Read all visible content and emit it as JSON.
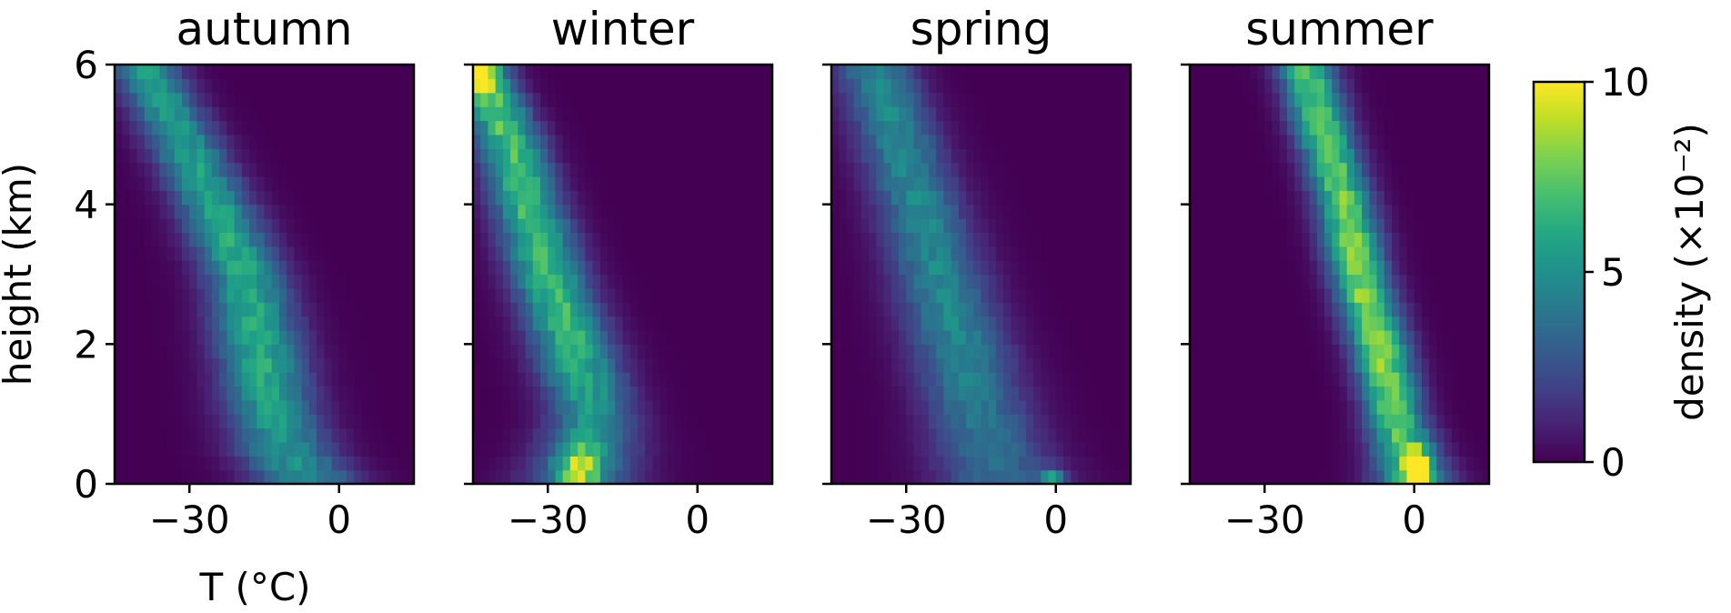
{
  "chart_data": {
    "type": "heatmap",
    "panels": [
      {
        "title": "autumn",
        "ridge": [
          [
            0,
            -6
          ],
          [
            0.5,
            -11
          ],
          [
            1,
            -13.5
          ],
          [
            2,
            -16
          ],
          [
            3,
            -19
          ],
          [
            4,
            -25
          ],
          [
            5,
            -32
          ],
          [
            6,
            -39
          ]
        ],
        "width_curve": [
          [
            0,
            11
          ],
          [
            1,
            9.5
          ],
          [
            6,
            7
          ]
        ],
        "peak_curve": [
          [
            0,
            4.8
          ],
          [
            2,
            6.2
          ],
          [
            6,
            5.5
          ]
        ],
        "hotspots": []
      },
      {
        "title": "winter",
        "ridge": [
          [
            0,
            -24
          ],
          [
            0.5,
            -22
          ],
          [
            1,
            -21
          ],
          [
            2,
            -25
          ],
          [
            3,
            -30
          ],
          [
            4,
            -34
          ],
          [
            5,
            -38
          ],
          [
            6,
            -44
          ]
        ],
        "width_curve": [
          [
            0,
            12
          ],
          [
            1,
            9
          ],
          [
            6,
            6
          ]
        ],
        "peak_curve": [
          [
            0,
            4.0
          ],
          [
            2,
            6.6
          ],
          [
            6,
            7.5
          ]
        ],
        "hotspots": [
          {
            "x": -23.5,
            "y": 0.22,
            "sx": 3.0,
            "sy": 0.25,
            "v": 5.5
          },
          {
            "x": -44,
            "y": 5.95,
            "sx": 1.8,
            "sy": 0.2,
            "v": 8.0
          }
        ]
      },
      {
        "title": "spring",
        "ridge": [
          [
            0,
            -11
          ],
          [
            0.5,
            -13.5
          ],
          [
            1,
            -15.5
          ],
          [
            2,
            -19.5
          ],
          [
            3,
            -23.5
          ],
          [
            4,
            -27.5
          ],
          [
            5,
            -32
          ],
          [
            6,
            -36.5
          ]
        ],
        "width_curve": [
          [
            0,
            13
          ],
          [
            1,
            11
          ],
          [
            6,
            8
          ]
        ],
        "peak_curve": [
          [
            0,
            3.6
          ],
          [
            2,
            4.6
          ],
          [
            6,
            4.7
          ]
        ],
        "hotspots": [
          {
            "x": -0.5,
            "y": 0.08,
            "sx": 1.4,
            "sy": 0.1,
            "v": 5.0
          }
        ]
      },
      {
        "title": "summer",
        "ridge": [
          [
            0,
            0
          ],
          [
            0.5,
            -2
          ],
          [
            1,
            -4
          ],
          [
            2,
            -7
          ],
          [
            3,
            -11
          ],
          [
            4,
            -14
          ],
          [
            5,
            -18
          ],
          [
            6,
            -22
          ]
        ],
        "width_curve": [
          [
            0,
            8
          ],
          [
            1,
            6
          ],
          [
            6,
            6
          ]
        ],
        "peak_curve": [
          [
            0,
            6.5
          ],
          [
            2,
            8.6
          ],
          [
            6,
            7.0
          ]
        ],
        "hotspots": [
          {
            "x": 0.5,
            "y": 0.18,
            "sx": 1.6,
            "sy": 0.2,
            "v": 10.0
          }
        ]
      }
    ],
    "x_ticks": [
      -30,
      0
    ],
    "x_tick_labels": [
      "−30",
      "0"
    ],
    "xlim": [
      -45,
      15
    ],
    "y_ticks": [
      0,
      2,
      4,
      6
    ],
    "y_tick_labels": [
      "0",
      "2",
      "4",
      "6"
    ],
    "ylim": [
      0,
      6
    ],
    "xlabel": "T (°C)",
    "ylabel": "height (km)",
    "grid": false,
    "colormap": "viridis",
    "colorbar": {
      "label": "density (×10⁻²)",
      "ticks": [
        0,
        5,
        10
      ],
      "tick_labels": [
        "0",
        "5",
        "10"
      ],
      "range": [
        0,
        10
      ]
    },
    "bins": {
      "x": 40,
      "y": 30
    }
  }
}
